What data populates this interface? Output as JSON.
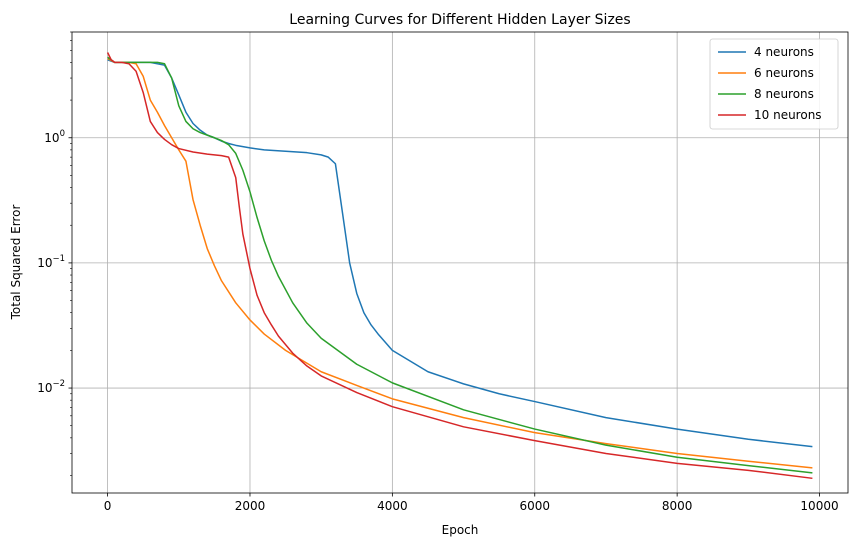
{
  "chart_data": {
    "type": "line",
    "title": "Learning Curves for Different Hidden Layer Sizes",
    "xlabel": "Epoch",
    "ylabel": "Total Squared Error",
    "yscale": "log",
    "xlim": [
      -500,
      10400
    ],
    "ylim": [
      0.00145,
      7.0
    ],
    "x_ticks": [
      0,
      2000,
      4000,
      6000,
      8000,
      10000
    ],
    "x_tick_labels": [
      "0",
      "2000",
      "4000",
      "6000",
      "8000",
      "10000"
    ],
    "y_ticks": [
      0.01,
      0.1,
      1
    ],
    "y_tick_labels": [
      {
        "base": "10",
        "exp": "−2"
      },
      {
        "base": "10",
        "exp": "−1"
      },
      {
        "base": "10",
        "exp": "0"
      }
    ],
    "grid": true,
    "legend_position": "top-right",
    "series": [
      {
        "name": "4 neurons",
        "color": "#1f77b4",
        "x": [
          0,
          100,
          200,
          400,
          600,
          800,
          900,
          1000,
          1100,
          1200,
          1300,
          1400,
          1500,
          1600,
          1700,
          1800,
          2000,
          2200,
          2500,
          2800,
          3000,
          3100,
          3200,
          3300,
          3400,
          3500,
          3600,
          3700,
          3800,
          4000,
          4500,
          5000,
          5500,
          6000,
          7000,
          8000,
          9000,
          9900
        ],
        "y": [
          4.2,
          4.0,
          4.0,
          4.0,
          4.0,
          3.8,
          3.0,
          2.2,
          1.6,
          1.3,
          1.15,
          1.05,
          1.0,
          0.94,
          0.9,
          0.87,
          0.83,
          0.8,
          0.78,
          0.76,
          0.73,
          0.7,
          0.62,
          0.25,
          0.1,
          0.057,
          0.04,
          0.032,
          0.027,
          0.02,
          0.0135,
          0.0108,
          0.009,
          0.0078,
          0.0058,
          0.0047,
          0.0039,
          0.0034
        ]
      },
      {
        "name": "6 neurons",
        "color": "#ff7f0e",
        "x": [
          0,
          100,
          200,
          300,
          400,
          500,
          600,
          700,
          800,
          900,
          1000,
          1100,
          1200,
          1300,
          1400,
          1500,
          1600,
          1800,
          2000,
          2200,
          2500,
          3000,
          3500,
          4000,
          5000,
          6000,
          7000,
          8000,
          9000,
          9900
        ],
        "y": [
          4.3,
          4.0,
          4.0,
          4.0,
          3.9,
          3.1,
          2.0,
          1.6,
          1.25,
          1.0,
          0.8,
          0.65,
          0.32,
          0.2,
          0.13,
          0.095,
          0.072,
          0.048,
          0.035,
          0.027,
          0.02,
          0.0135,
          0.0105,
          0.0082,
          0.0058,
          0.0044,
          0.0036,
          0.003,
          0.0026,
          0.0023
        ]
      },
      {
        "name": "8 neurons",
        "color": "#2ca02c",
        "x": [
          0,
          100,
          200,
          300,
          400,
          500,
          600,
          700,
          800,
          900,
          1000,
          1100,
          1200,
          1300,
          1400,
          1500,
          1600,
          1700,
          1800,
          1900,
          2000,
          2100,
          2200,
          2300,
          2400,
          2600,
          2800,
          3000,
          3500,
          4000,
          5000,
          6000,
          7000,
          8000,
          9000,
          9900
        ],
        "y": [
          4.4,
          4.0,
          4.0,
          4.0,
          4.0,
          4.0,
          4.0,
          4.0,
          3.9,
          3.0,
          1.8,
          1.35,
          1.18,
          1.1,
          1.05,
          1.0,
          0.95,
          0.88,
          0.75,
          0.55,
          0.37,
          0.23,
          0.15,
          0.105,
          0.078,
          0.048,
          0.033,
          0.025,
          0.0155,
          0.011,
          0.0067,
          0.0047,
          0.0035,
          0.0028,
          0.0024,
          0.0021
        ]
      },
      {
        "name": "10 neurons",
        "color": "#d62728",
        "x": [
          0,
          50,
          100,
          200,
          300,
          400,
          500,
          600,
          700,
          800,
          900,
          1000,
          1200,
          1400,
          1600,
          1700,
          1800,
          1850,
          1900,
          2000,
          2100,
          2200,
          2300,
          2400,
          2600,
          2800,
          3000,
          3500,
          4000,
          5000,
          6000,
          7000,
          8000,
          9000,
          9900
        ],
        "y": [
          4.8,
          4.2,
          4.0,
          4.0,
          3.9,
          3.4,
          2.3,
          1.35,
          1.1,
          0.97,
          0.88,
          0.82,
          0.77,
          0.74,
          0.72,
          0.7,
          0.48,
          0.28,
          0.17,
          0.09,
          0.055,
          0.04,
          0.032,
          0.026,
          0.019,
          0.015,
          0.0125,
          0.0092,
          0.0071,
          0.0049,
          0.0038,
          0.003,
          0.0025,
          0.0022,
          0.0019
        ]
      }
    ]
  }
}
